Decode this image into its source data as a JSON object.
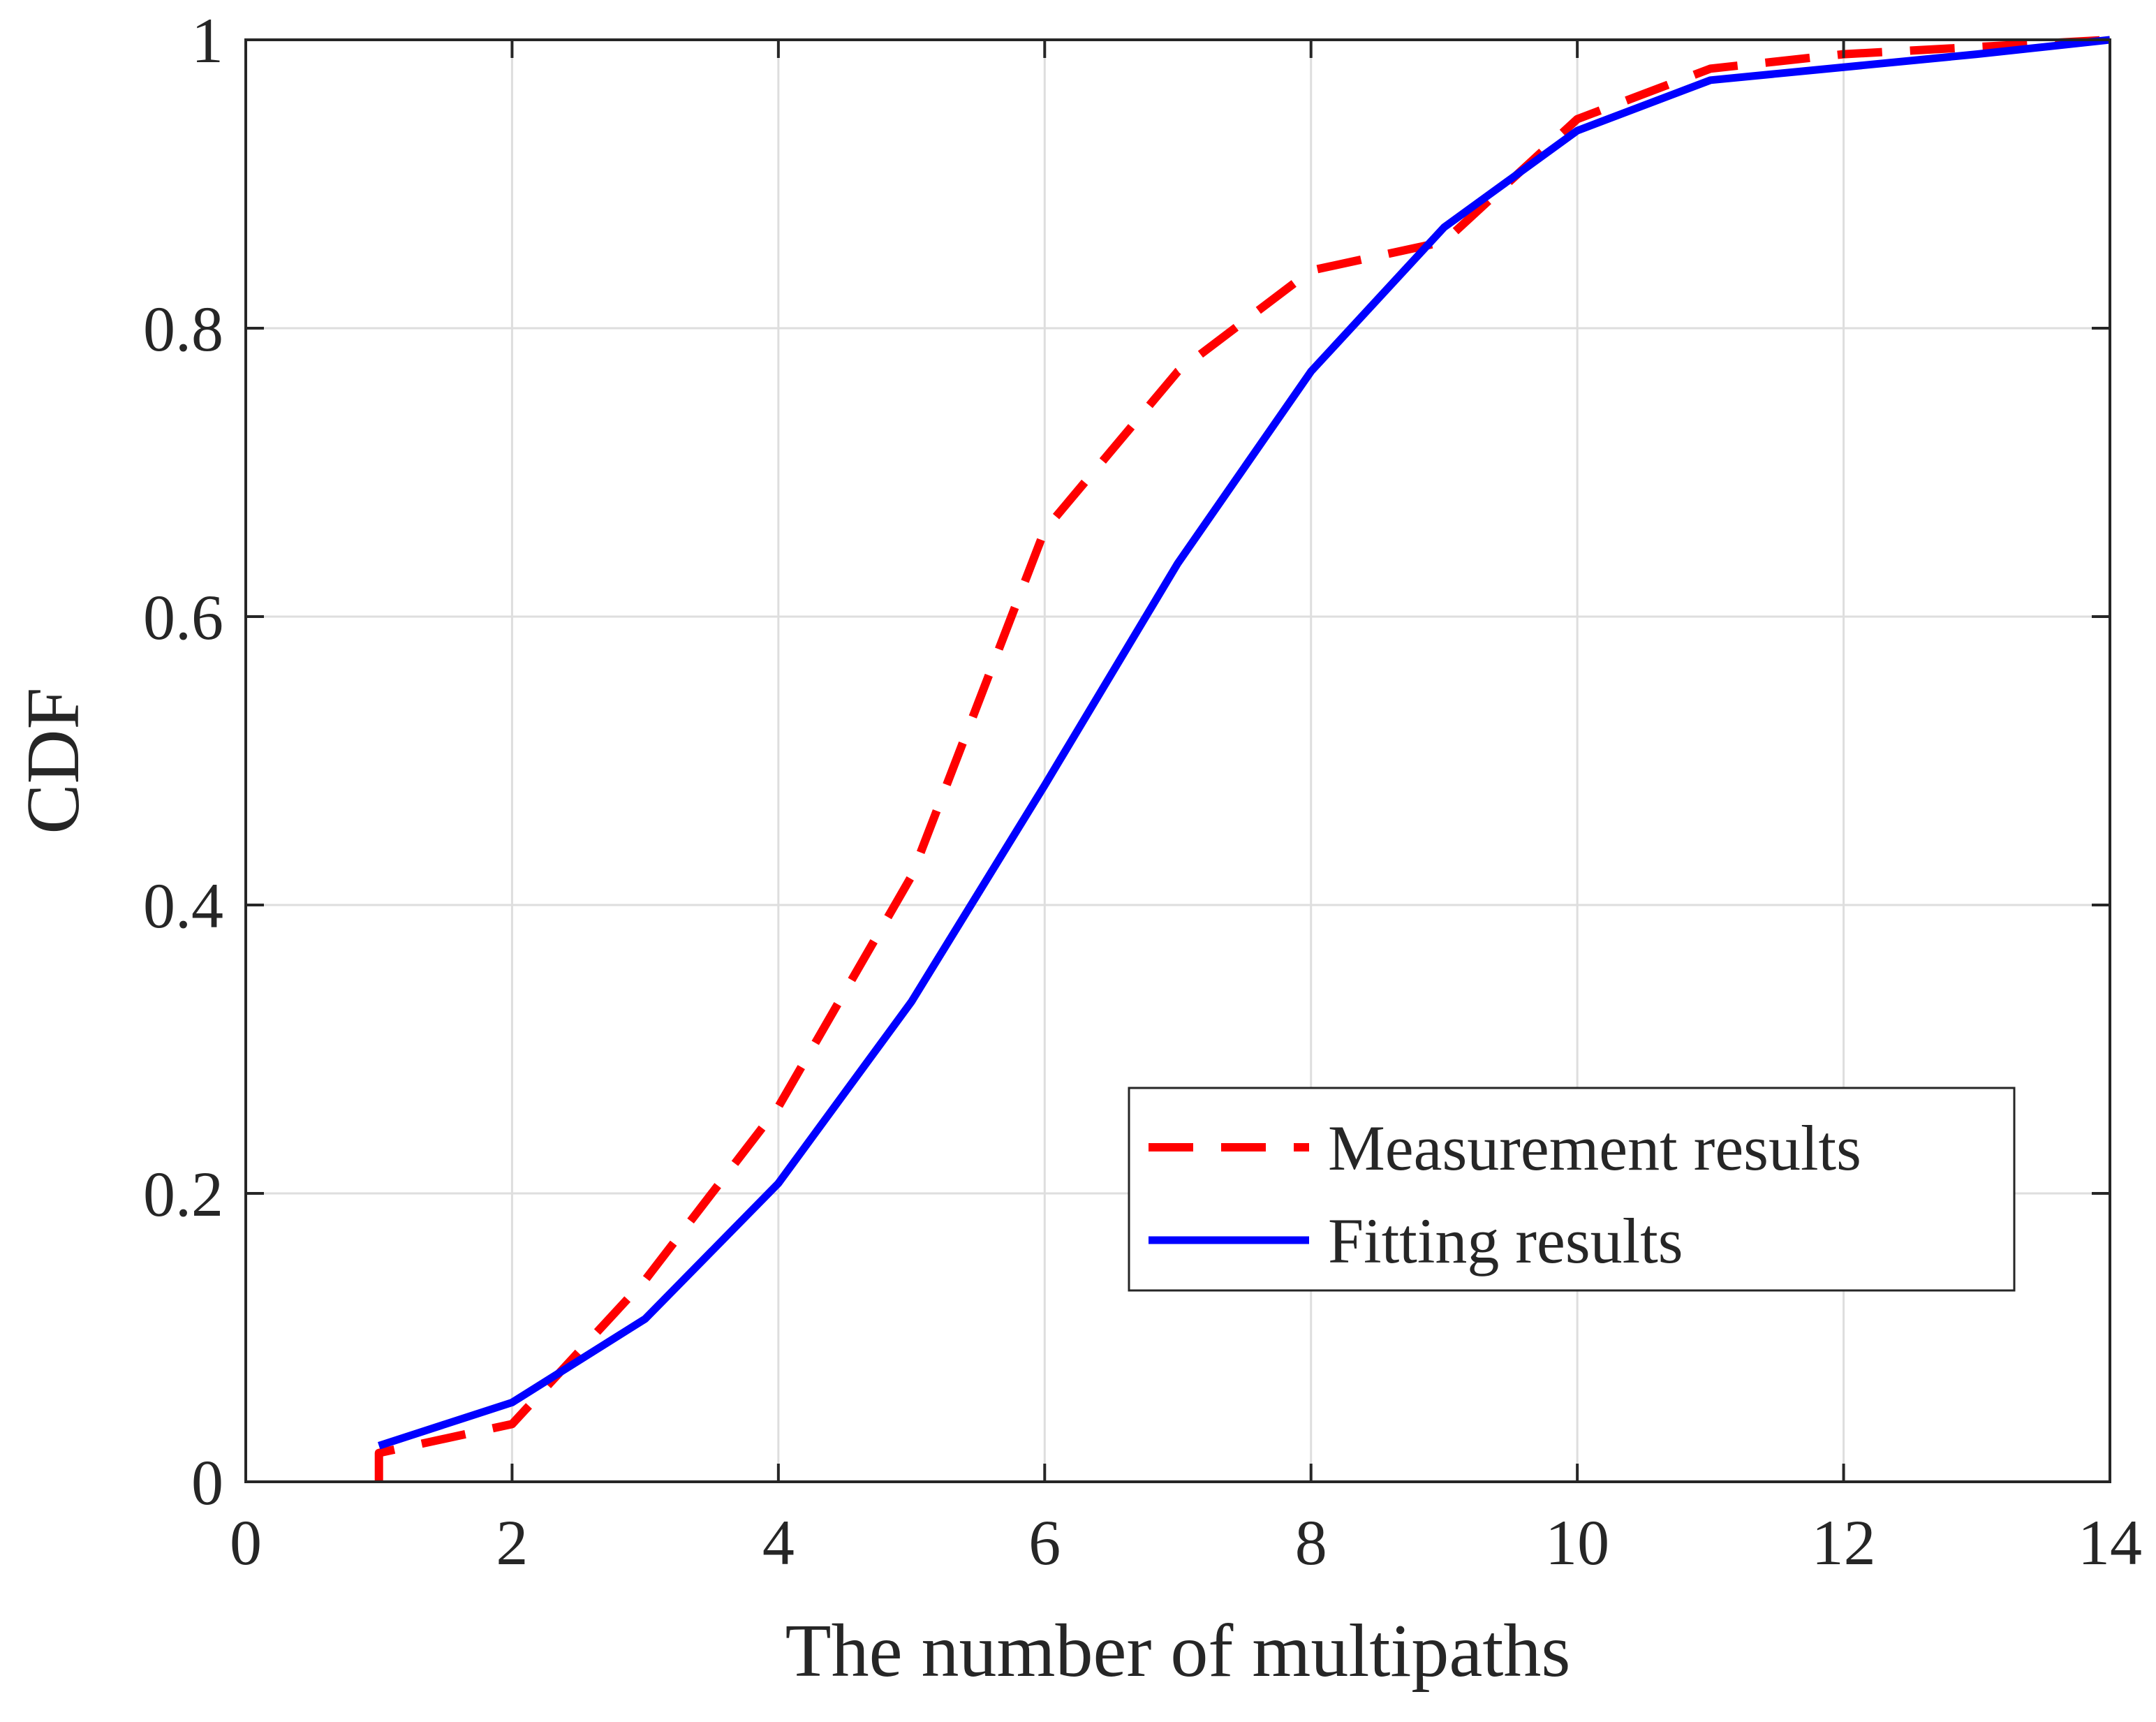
{
  "chart_data": {
    "type": "line",
    "title": "",
    "xlabel": "The number of multipaths",
    "ylabel": "CDF",
    "xlim": [
      0,
      14
    ],
    "ylim": [
      0,
      1
    ],
    "xticks": [
      0,
      2,
      4,
      6,
      8,
      10,
      12,
      14
    ],
    "yticks": [
      0,
      0.2,
      0.4,
      0.6,
      0.8,
      1
    ],
    "xtick_labels": [
      "0",
      "2",
      "4",
      "6",
      "8",
      "10",
      "12",
      "14"
    ],
    "ytick_labels": [
      "0",
      "0.2",
      "0.4",
      "0.6",
      "0.8",
      "1"
    ],
    "grid": true,
    "legend_position": "bottom-right",
    "series": [
      {
        "name": "Measurement results",
        "color": "#ff0000",
        "style": "dashed",
        "x": [
          1,
          1,
          2,
          3,
          4,
          5,
          6,
          7,
          8,
          9,
          10,
          11,
          12,
          13,
          14
        ],
        "y": [
          0,
          0.02,
          0.04,
          0.14,
          0.26,
          0.42,
          0.66,
          0.77,
          0.84,
          0.86,
          0.945,
          0.98,
          0.99,
          0.995,
          1.0
        ]
      },
      {
        "name": "Fitting results",
        "color": "#0000ff",
        "style": "solid",
        "x": [
          1,
          2,
          3,
          4,
          5,
          6,
          7,
          8,
          9,
          10,
          11,
          12,
          13,
          14
        ],
        "y": [
          0.025,
          0.055,
          0.113,
          0.207,
          0.333,
          0.483,
          0.637,
          0.77,
          0.87,
          0.937,
          0.972,
          0.981,
          0.99,
          1.0
        ]
      }
    ]
  }
}
